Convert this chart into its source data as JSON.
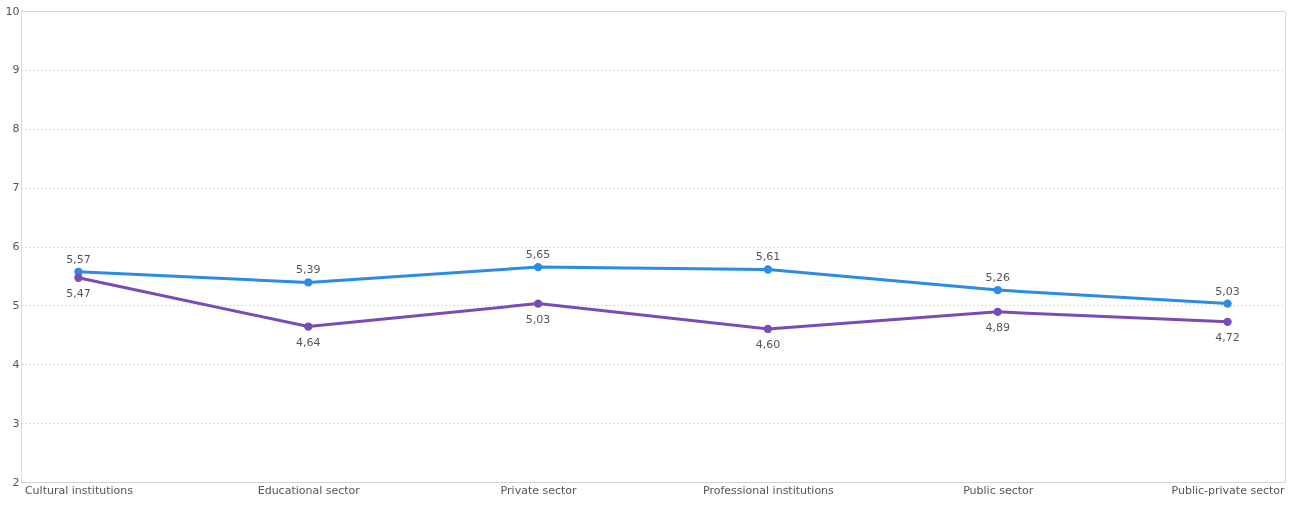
{
  "chart_data": {
    "type": "line",
    "categories": [
      "Cultural institutions",
      "Educational sector",
      "Private sector",
      "Professional institutions",
      "Public sector",
      "Public-private sector"
    ],
    "series": [
      {
        "color": "#2b8be6",
        "values": [
          5.57,
          5.39,
          5.65,
          5.61,
          5.26,
          5.03
        ],
        "value_labels": [
          "5,57",
          "5,39",
          "5,65",
          "5,61",
          "5,26",
          "5,03"
        ]
      },
      {
        "color": "#7a4bb8",
        "values": [
          5.47,
          4.64,
          5.03,
          4.6,
          4.89,
          4.72
        ],
        "value_labels": [
          "5,47",
          "4,64",
          "5,03",
          "4,60",
          "4,89",
          "4,72"
        ]
      }
    ],
    "ylim": [
      2,
      10
    ],
    "yticks": [
      2,
      3,
      4,
      5,
      6,
      7,
      8,
      9,
      10
    ],
    "grid": "y",
    "marker": "circle",
    "line_style": "solid"
  }
}
